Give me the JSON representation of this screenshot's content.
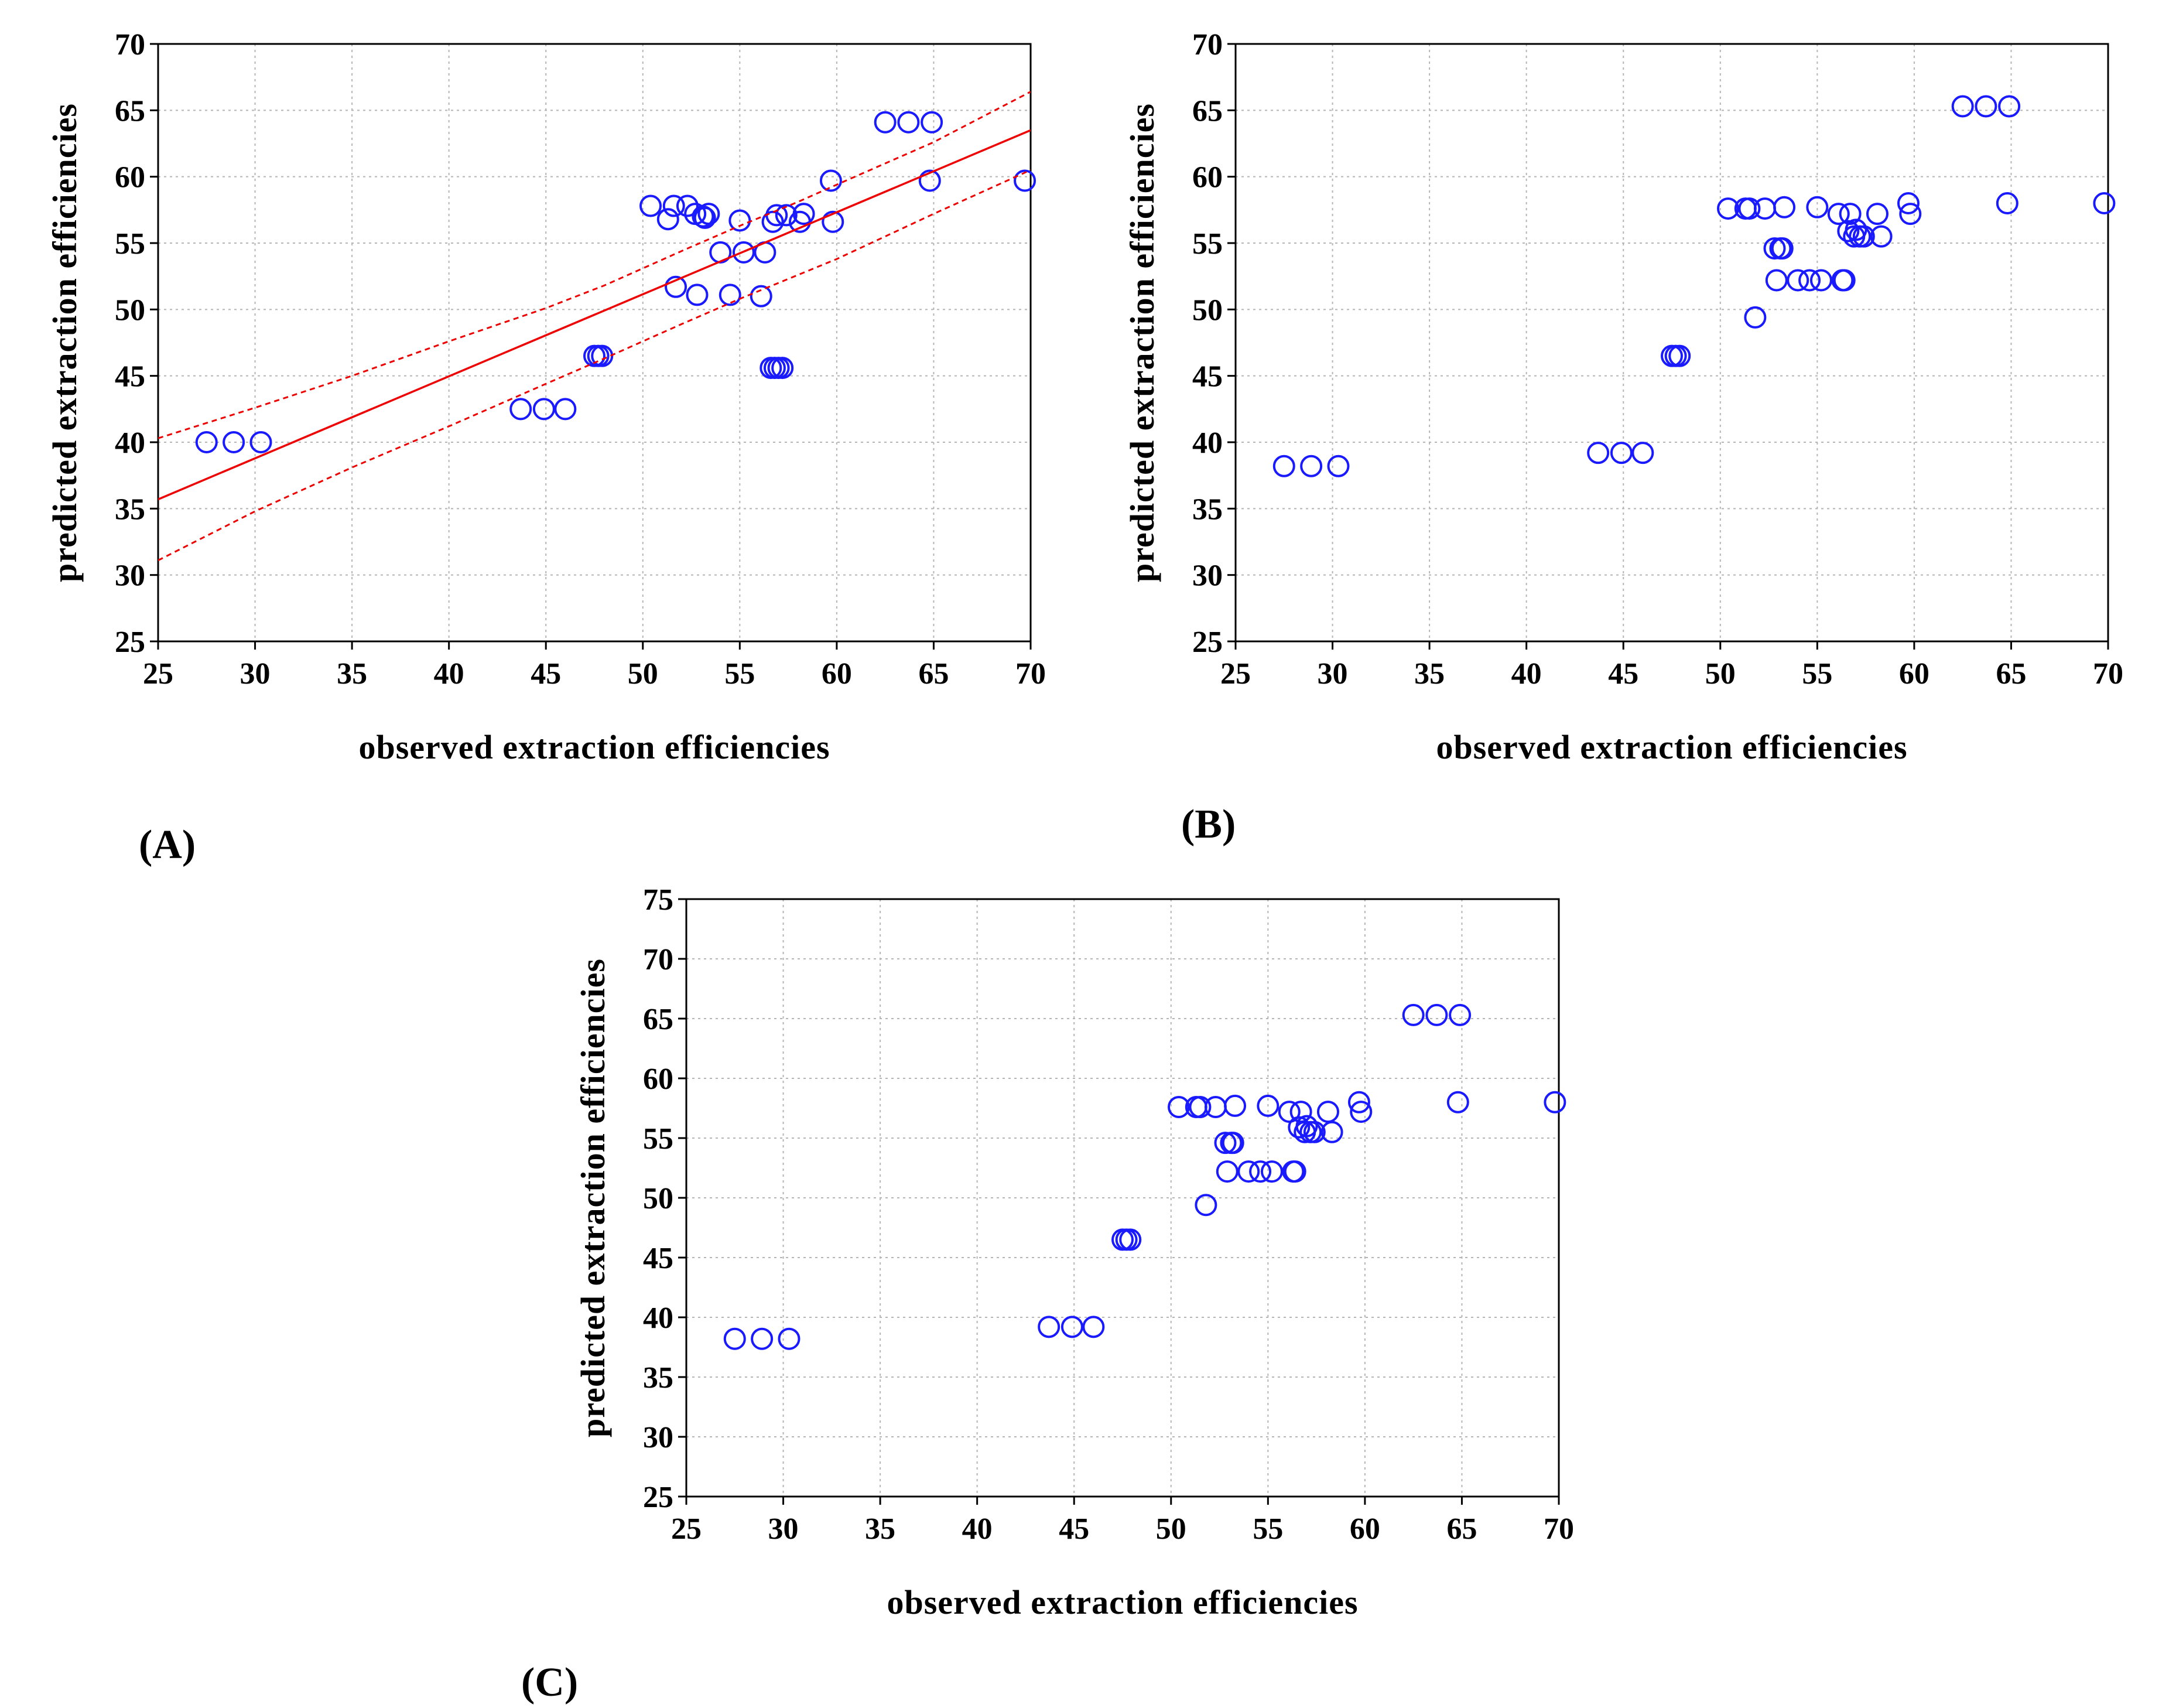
{
  "chart_data": [
    {
      "type": "scatter",
      "panel": "(A)",
      "title": "",
      "xlabel": "observed extraction efficiencies",
      "ylabel": "predicted extraction efficiencies",
      "xlim": [
        25,
        70
      ],
      "ylim": [
        25,
        70
      ],
      "xticks": [
        25,
        30,
        35,
        40,
        45,
        50,
        55,
        60,
        65,
        70
      ],
      "yticks": [
        25,
        30,
        35,
        40,
        45,
        50,
        55,
        60,
        65,
        70
      ],
      "grid": true,
      "series": [
        {
          "name": "data",
          "marker": "circle",
          "color": "#1a1aff",
          "x": [
            27.5,
            28.9,
            30.3,
            43.7,
            44.9,
            46.0,
            47.5,
            47.7,
            47.9,
            50.4,
            51.3,
            51.6,
            51.7,
            52.3,
            52.7,
            52.8,
            53.1,
            53.4,
            53.2,
            54.0,
            54.5,
            55.0,
            55.2,
            56.1,
            56.3,
            56.6,
            56.7,
            56.9,
            57.0,
            57.2,
            56.8,
            57.4,
            58.1,
            58.3,
            59.7,
            59.8,
            62.5,
            63.7,
            64.9,
            64.8,
            69.7
          ],
          "y": [
            40.0,
            40.0,
            40.0,
            42.5,
            42.5,
            42.5,
            46.5,
            46.5,
            46.5,
            57.8,
            56.8,
            57.8,
            51.7,
            57.8,
            57.2,
            51.1,
            57.0,
            57.2,
            56.9,
            54.3,
            51.1,
            56.7,
            54.3,
            51.0,
            54.3,
            45.6,
            56.6,
            57.1,
            45.6,
            45.6,
            45.6,
            57.1,
            56.6,
            57.2,
            59.7,
            56.6,
            64.1,
            64.1,
            64.1,
            59.7,
            59.7
          ]
        },
        {
          "name": "regression",
          "style": "solid",
          "color": "#ee0000",
          "x": [
            25,
            70
          ],
          "y": [
            35.7,
            63.5
          ]
        },
        {
          "name": "95% confidence upper",
          "style": "dashed",
          "color": "#ee0000",
          "x": [
            25,
            30,
            35,
            40,
            45,
            48,
            50,
            52,
            55,
            58,
            60,
            65,
            70
          ],
          "y": [
            40.3,
            42.6,
            45.0,
            47.6,
            50.1,
            51.8,
            53.1,
            54.4,
            56.3,
            58.1,
            59.4,
            62.6,
            66.4
          ]
        },
        {
          "name": "95% confidence lower",
          "style": "dashed",
          "color": "#ee0000",
          "x": [
            25,
            30,
            35,
            40,
            45,
            48,
            50,
            52,
            55,
            58,
            60,
            65,
            70
          ],
          "y": [
            31.1,
            34.8,
            38.1,
            41.2,
            44.4,
            46.3,
            47.6,
            48.9,
            50.8,
            52.6,
            53.8,
            57.2,
            60.5
          ]
        }
      ]
    },
    {
      "type": "scatter",
      "panel": "(B)",
      "title": "",
      "xlabel": "observed extraction efficiencies",
      "ylabel": "predicted extraction efficiencies",
      "xlim": [
        25,
        70
      ],
      "ylim": [
        25,
        70
      ],
      "xticks": [
        25,
        30,
        35,
        40,
        45,
        50,
        55,
        60,
        65,
        70
      ],
      "yticks": [
        25,
        30,
        35,
        40,
        45,
        50,
        55,
        60,
        65,
        70
      ],
      "grid": true,
      "series": [
        {
          "name": "data",
          "marker": "circle",
          "color": "#1a1aff",
          "x": [
            27.5,
            28.9,
            30.3,
            43.7,
            44.9,
            46.0,
            47.5,
            47.7,
            47.9,
            50.4,
            51.3,
            51.5,
            51.8,
            52.3,
            52.8,
            52.9,
            53.1,
            53.3,
            53.2,
            54.0,
            54.6,
            55.0,
            55.2,
            56.1,
            56.3,
            56.4,
            56.6,
            56.7,
            56.9,
            57.0,
            57.2,
            57.4,
            58.1,
            58.3,
            59.7,
            59.8,
            62.5,
            63.7,
            64.9,
            64.8,
            69.8
          ],
          "y": [
            38.2,
            38.2,
            38.2,
            39.2,
            39.2,
            39.2,
            46.5,
            46.5,
            46.5,
            57.6,
            57.6,
            57.6,
            49.4,
            57.6,
            54.6,
            52.2,
            54.6,
            57.7,
            54.6,
            52.2,
            52.2,
            57.7,
            52.2,
            57.2,
            52.2,
            52.2,
            55.9,
            57.2,
            55.5,
            56.0,
            55.5,
            55.5,
            57.2,
            55.5,
            58.0,
            57.2,
            65.3,
            65.3,
            65.3,
            58.0,
            58.0
          ]
        }
      ]
    },
    {
      "type": "scatter",
      "panel": "(C)",
      "title": "",
      "xlabel": "observed extraction efficiencies",
      "ylabel": "predicted extraction efficiencies",
      "xlim": [
        25,
        70
      ],
      "ylim": [
        25,
        75
      ],
      "xticks": [
        25,
        30,
        35,
        40,
        45,
        50,
        55,
        60,
        65,
        70
      ],
      "yticks": [
        25,
        30,
        35,
        40,
        45,
        50,
        55,
        60,
        65,
        70,
        75
      ],
      "grid": true,
      "series": [
        {
          "name": "data",
          "marker": "circle",
          "color": "#1a1aff",
          "x": [
            27.5,
            28.9,
            30.3,
            43.7,
            44.9,
            46.0,
            47.5,
            47.7,
            47.9,
            50.4,
            51.3,
            51.5,
            51.8,
            52.3,
            52.8,
            52.9,
            53.1,
            53.3,
            53.2,
            54.0,
            54.6,
            55.0,
            55.2,
            56.1,
            56.3,
            56.4,
            56.6,
            56.7,
            56.9,
            57.0,
            57.2,
            57.4,
            58.1,
            58.3,
            59.7,
            59.8,
            62.5,
            63.7,
            64.9,
            64.8,
            69.8
          ],
          "y": [
            38.2,
            38.2,
            38.2,
            39.2,
            39.2,
            39.2,
            46.5,
            46.5,
            46.5,
            57.6,
            57.6,
            57.6,
            49.4,
            57.6,
            54.6,
            52.2,
            54.6,
            57.7,
            54.6,
            52.2,
            52.2,
            57.7,
            52.2,
            57.2,
            52.2,
            52.2,
            55.9,
            57.2,
            55.5,
            56.0,
            55.5,
            55.5,
            57.2,
            55.5,
            58.0,
            57.2,
            65.3,
            65.3,
            65.3,
            58.0,
            58.0
          ]
        }
      ]
    }
  ]
}
